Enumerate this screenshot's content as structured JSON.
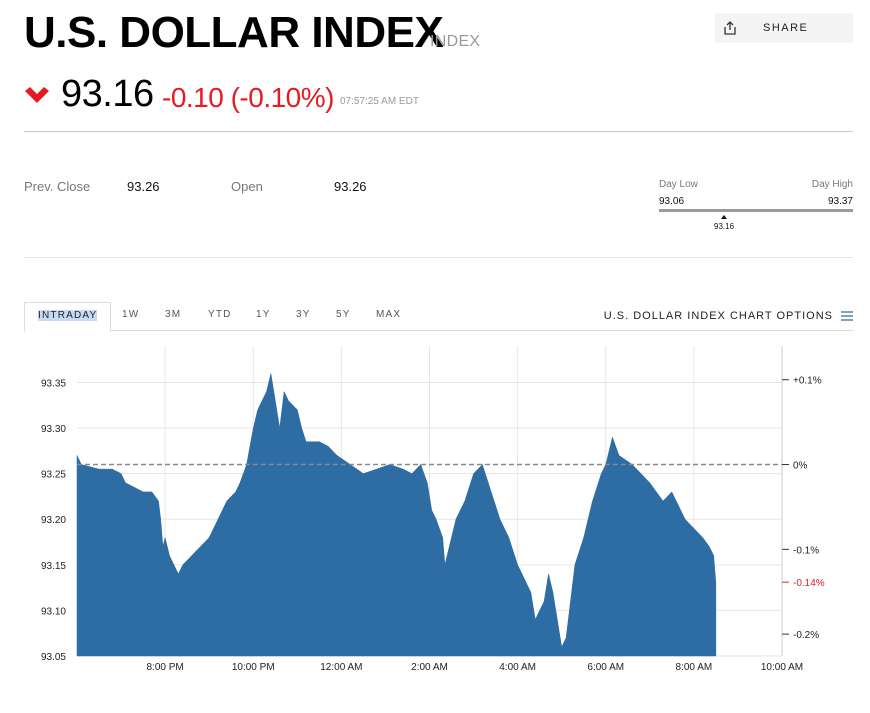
{
  "header": {
    "title": "U.S. DOLLAR INDEX",
    "kind": "INDEX",
    "share_label": "SHARE"
  },
  "quote": {
    "price": "93.16",
    "change": "-0.10 (-0.10%)",
    "time": "07:57:25 AM EDT",
    "direction_icon": "down-heart-arrow-icon",
    "down_color": "#e51b23"
  },
  "stats": {
    "prev_close_label": "Prev. Close",
    "prev_close": "93.26",
    "open_label": "Open",
    "open": "93.26",
    "day_low_label": "Day Low",
    "day_low": "93.06",
    "day_high_label": "Day High",
    "day_high": "93.37",
    "current": "93.16"
  },
  "tabs": [
    "INTRADAY",
    "1W",
    "3M",
    "YTD",
    "1Y",
    "3Y",
    "5Y",
    "MAX"
  ],
  "chart_options_label": "U.S. DOLLAR INDEX CHART OPTIONS",
  "chart_data": {
    "type": "area",
    "series_color": "#2e6ca4",
    "reference_line": 93.26,
    "ylim": [
      93.05,
      93.39
    ],
    "yticks": [
      "93.35",
      "93.30",
      "93.25",
      "93.20",
      "93.15",
      "93.10",
      "93.05"
    ],
    "ytick_values": [
      93.35,
      93.3,
      93.25,
      93.2,
      93.15,
      93.1,
      93.05
    ],
    "pct_ticks": [
      {
        "label": "+0.1%",
        "value": 93.353
      },
      {
        "label": "0%",
        "value": 93.26
      },
      {
        "label": "-0.1%",
        "value": 93.167
      },
      {
        "label": "-0.2%",
        "value": 93.074
      }
    ],
    "current_pct": {
      "label": "-0.14%",
      "value": 93.131,
      "color": "#e51b23"
    },
    "xticks": [
      "8:00 PM",
      "10:00 PM",
      "12:00 AM",
      "2:00 AM",
      "4:00 AM",
      "6:00 AM",
      "8:00 AM",
      "10:00 AM"
    ],
    "x_hours_from_8pm": [
      0,
      2,
      4,
      6,
      8,
      10,
      12,
      14
    ],
    "series": [
      {
        "points": [
          [
            -2.0,
            93.27
          ],
          [
            -1.9,
            93.26
          ],
          [
            -1.5,
            93.255
          ],
          [
            -1.2,
            93.255
          ],
          [
            -1.0,
            93.25
          ],
          [
            -0.9,
            93.24
          ],
          [
            -0.7,
            93.235
          ],
          [
            -0.5,
            93.23
          ],
          [
            -0.3,
            93.23
          ],
          [
            -0.15,
            93.22
          ],
          [
            -0.1,
            93.2
          ],
          [
            -0.05,
            93.17
          ],
          [
            0.0,
            93.18
          ],
          [
            0.1,
            93.16
          ],
          [
            0.2,
            93.15
          ],
          [
            0.3,
            93.14
          ],
          [
            0.4,
            93.15
          ],
          [
            0.6,
            93.16
          ],
          [
            0.8,
            93.17
          ],
          [
            1.0,
            93.18
          ],
          [
            1.2,
            93.2
          ],
          [
            1.4,
            93.22
          ],
          [
            1.6,
            93.23
          ],
          [
            1.7,
            93.24
          ],
          [
            1.85,
            93.26
          ],
          [
            2.0,
            93.3
          ],
          [
            2.1,
            93.32
          ],
          [
            2.3,
            93.34
          ],
          [
            2.4,
            93.36
          ],
          [
            2.5,
            93.33
          ],
          [
            2.6,
            93.3
          ],
          [
            2.7,
            93.34
          ],
          [
            2.8,
            93.33
          ],
          [
            3.0,
            93.32
          ],
          [
            3.1,
            93.3
          ],
          [
            3.2,
            93.285
          ],
          [
            3.5,
            93.285
          ],
          [
            3.7,
            93.28
          ],
          [
            3.9,
            93.27
          ],
          [
            4.2,
            93.26
          ],
          [
            4.5,
            93.25
          ],
          [
            4.8,
            93.255
          ],
          [
            5.1,
            93.26
          ],
          [
            5.4,
            93.255
          ],
          [
            5.6,
            93.25
          ],
          [
            5.8,
            93.26
          ],
          [
            5.95,
            93.24
          ],
          [
            6.05,
            93.21
          ],
          [
            6.15,
            93.2
          ],
          [
            6.3,
            93.18
          ],
          [
            6.35,
            93.15
          ],
          [
            6.45,
            93.17
          ],
          [
            6.6,
            93.2
          ],
          [
            6.8,
            93.22
          ],
          [
            7.0,
            93.25
          ],
          [
            7.2,
            93.26
          ],
          [
            7.4,
            93.23
          ],
          [
            7.6,
            93.2
          ],
          [
            7.8,
            93.18
          ],
          [
            8.0,
            93.15
          ],
          [
            8.1,
            93.14
          ],
          [
            8.3,
            93.12
          ],
          [
            8.4,
            93.09
          ],
          [
            8.6,
            93.11
          ],
          [
            8.7,
            93.14
          ],
          [
            8.8,
            93.12
          ],
          [
            8.9,
            93.09
          ],
          [
            9.0,
            93.06
          ],
          [
            9.1,
            93.07
          ],
          [
            9.2,
            93.11
          ],
          [
            9.3,
            93.15
          ],
          [
            9.5,
            93.18
          ],
          [
            9.7,
            93.22
          ],
          [
            9.9,
            93.25
          ],
          [
            10.0,
            93.26
          ],
          [
            10.15,
            93.29
          ],
          [
            10.3,
            93.27
          ],
          [
            10.6,
            93.26
          ],
          [
            10.8,
            93.25
          ],
          [
            11.0,
            93.24
          ],
          [
            11.3,
            93.22
          ],
          [
            11.5,
            93.23
          ],
          [
            11.7,
            93.21
          ],
          [
            11.8,
            93.2
          ],
          [
            12.0,
            93.19
          ],
          [
            12.2,
            93.18
          ],
          [
            12.35,
            93.17
          ],
          [
            12.45,
            93.16
          ],
          [
            12.5,
            93.13
          ]
        ]
      }
    ]
  }
}
